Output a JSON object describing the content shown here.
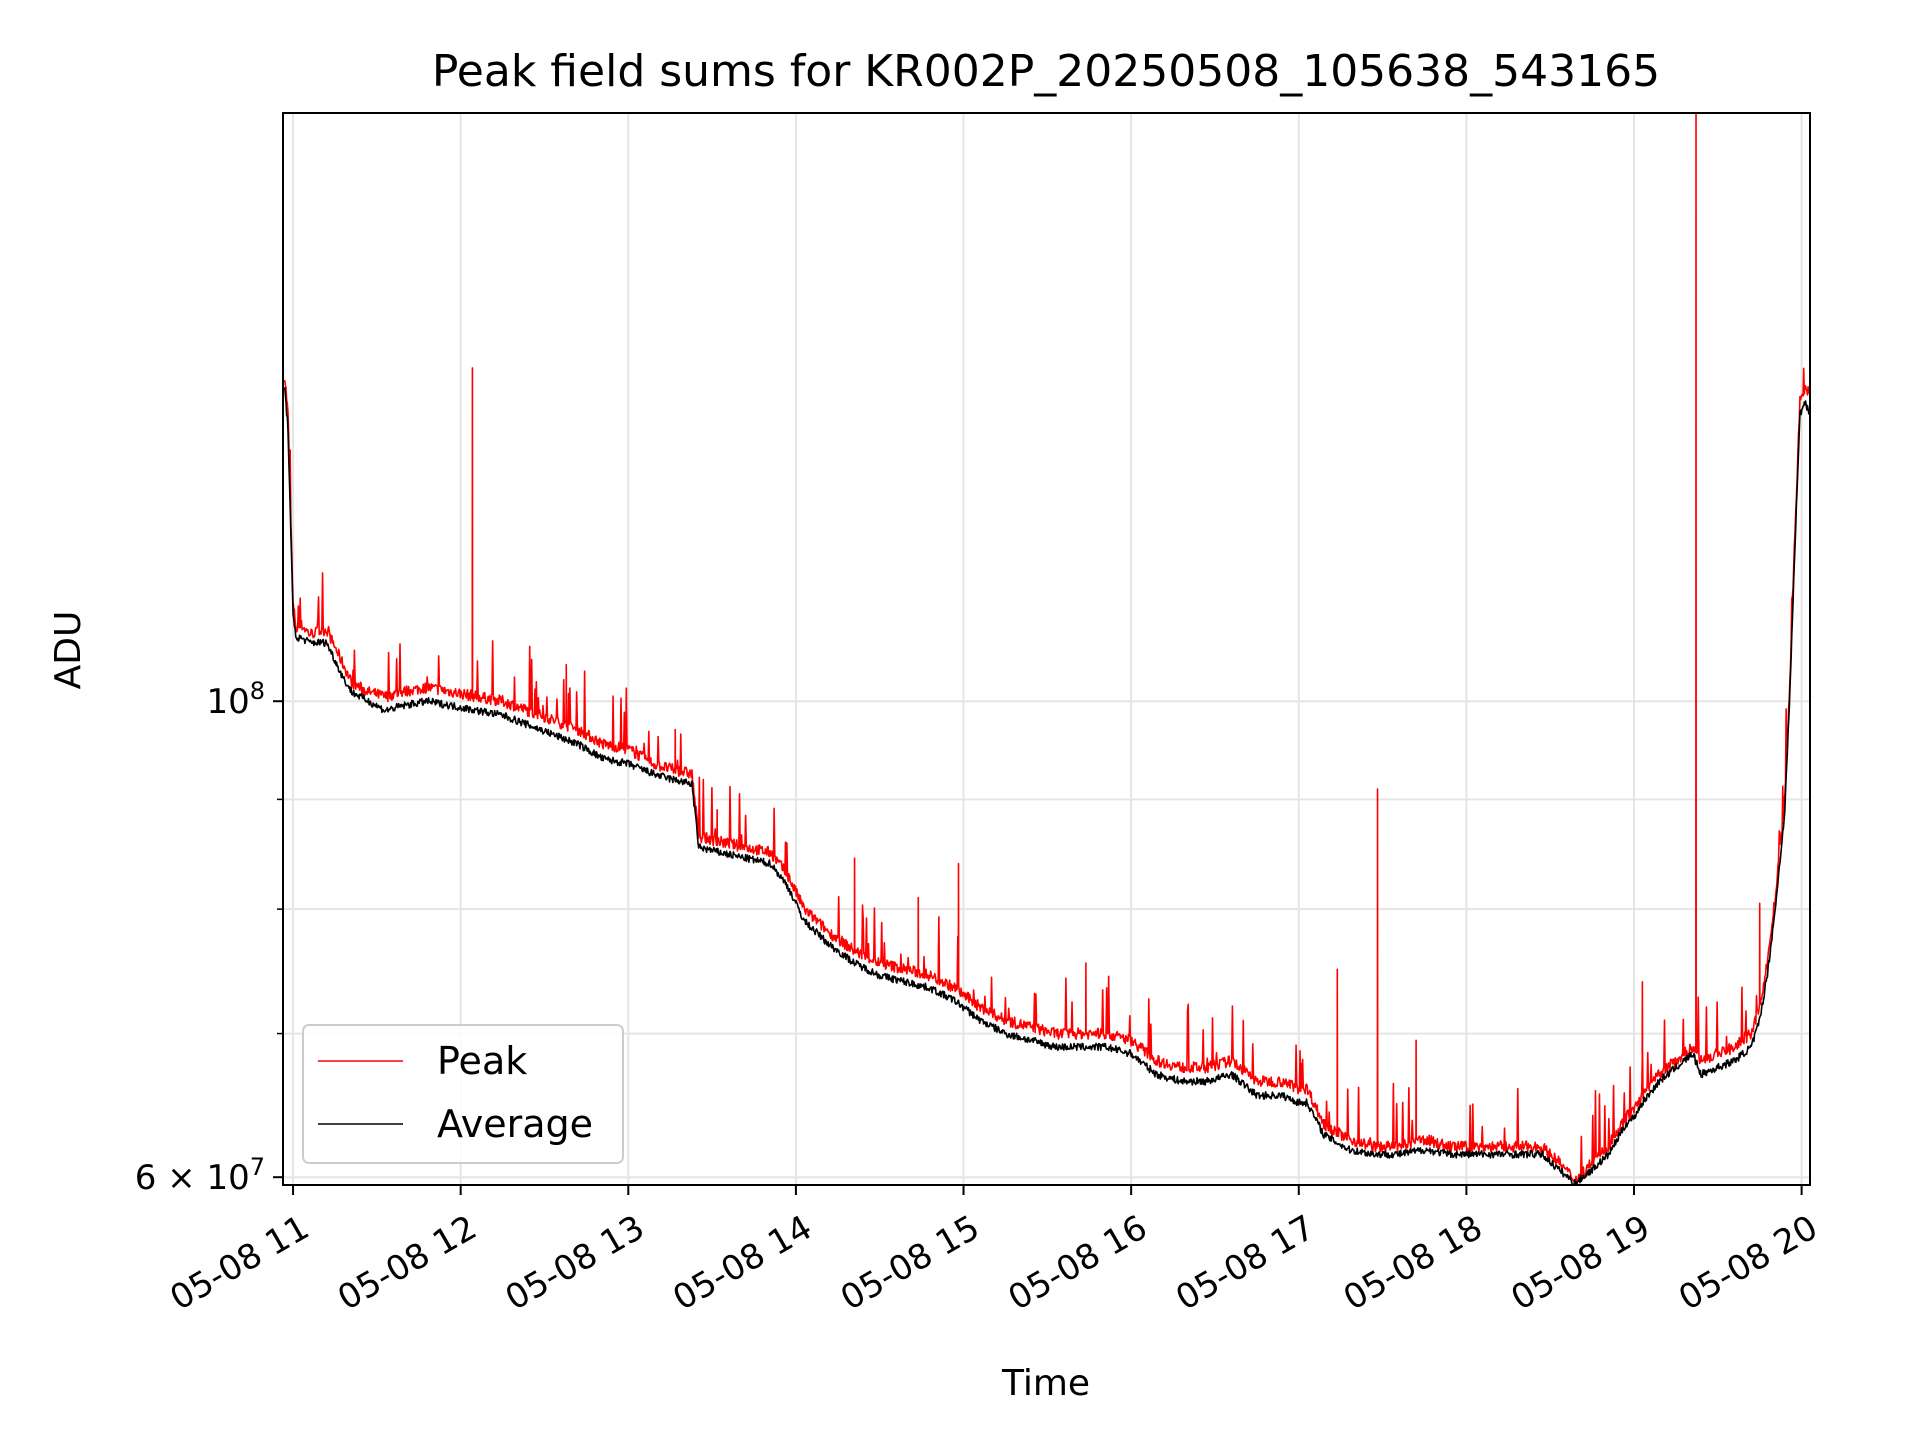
{
  "chart_data": {
    "type": "line",
    "title": "Peak field sums for KR002P_20250508_105638_543165",
    "xlabel": "Time",
    "ylabel": "ADU",
    "yscale": "log",
    "ylim": [
      59500000,
      188000000
    ],
    "xlim_hours": [
      10.94,
      20.05
    ],
    "grid": true,
    "legend_position": "lower-left",
    "x_ticks": [
      {
        "hour": 11,
        "label": "05-08 11"
      },
      {
        "hour": 12,
        "label": "05-08 12"
      },
      {
        "hour": 13,
        "label": "05-08 13"
      },
      {
        "hour": 14,
        "label": "05-08 14"
      },
      {
        "hour": 15,
        "label": "05-08 15"
      },
      {
        "hour": 16,
        "label": "05-08 16"
      },
      {
        "hour": 17,
        "label": "05-08 17"
      },
      {
        "hour": 18,
        "label": "05-08 18"
      },
      {
        "hour": 19,
        "label": "05-08 19"
      },
      {
        "hour": 20,
        "label": "05-08 20"
      }
    ],
    "y_major_ticks": [
      {
        "value": 60000000,
        "base": "6 × 10",
        "exp": "7"
      },
      {
        "value": 100000000,
        "base": "10",
        "exp": "8"
      }
    ],
    "y_minor_ticks": [
      70000000,
      80000000,
      90000000
    ],
    "series": [
      {
        "name": "Peak",
        "color": "#ff0000",
        "x": [
          10.95,
          10.97,
          11.0,
          11.02,
          11.05,
          11.1,
          11.2,
          11.3,
          11.35,
          11.45,
          11.55,
          11.65,
          11.8,
          11.95,
          12.1,
          12.25,
          12.4,
          12.55,
          12.7,
          12.85,
          13.0,
          13.15,
          13.25,
          13.38,
          13.42,
          13.55,
          13.7,
          13.85,
          13.95,
          14.05,
          14.2,
          14.35,
          14.5,
          14.65,
          14.8,
          14.95,
          15.1,
          15.25,
          15.4,
          15.55,
          15.7,
          15.85,
          16.0,
          16.15,
          16.3,
          16.45,
          16.6,
          16.75,
          16.9,
          17.0,
          17.05,
          17.15,
          17.3,
          17.45,
          17.6,
          17.75,
          17.9,
          18.05,
          18.2,
          18.35,
          18.45,
          18.55,
          18.65,
          18.75,
          18.85,
          18.95,
          19.0,
          19.05,
          19.15,
          19.25,
          19.35,
          19.4,
          19.5,
          19.6,
          19.7,
          19.75,
          19.8,
          19.85,
          19.9,
          19.93,
          19.96,
          19.99,
          20.02,
          20.05
        ],
        "y": [
          142000000,
          136000000,
          111000000,
          108000000,
          108500000,
          107500000,
          108000000,
          104000000,
          102000000,
          101000000,
          100500000,
          101000000,
          101500000,
          101000000,
          100500000,
          100000000,
          99000000,
          98000000,
          97000000,
          95500000,
          95000000,
          93500000,
          93000000,
          92500000,
          86500000,
          86000000,
          85500000,
          85000000,
          83000000,
          80000000,
          78000000,
          76500000,
          75500000,
          75000000,
          74500000,
          73500000,
          72000000,
          71000000,
          70500000,
          70000000,
          70000000,
          70000000,
          69500000,
          68000000,
          67500000,
          67500000,
          68000000,
          66500000,
          66500000,
          66000000,
          66000000,
          63500000,
          62500000,
          62000000,
          62000000,
          62500000,
          62000000,
          62000000,
          62000000,
          62000000,
          62000000,
          61000000,
          59800000,
          61000000,
          62000000,
          64000000,
          64500000,
          65500000,
          67000000,
          68000000,
          69000000,
          68000000,
          68500000,
          69000000,
          70000000,
          72000000,
          76000000,
          82000000,
          90000000,
          102000000,
          120000000,
          138000000,
          140000000,
          139000000
        ],
        "spikes": [
          {
            "x": 12.07,
            "y": 143000000
          },
          {
            "x": 12.63,
            "y": 104000000
          },
          {
            "x": 13.28,
            "y": 97000000
          },
          {
            "x": 13.53,
            "y": 89000000
          },
          {
            "x": 14.35,
            "y": 84500000
          },
          {
            "x": 14.73,
            "y": 81000000
          },
          {
            "x": 14.97,
            "y": 84000000
          },
          {
            "x": 15.73,
            "y": 75500000
          },
          {
            "x": 17.23,
            "y": 75000000
          },
          {
            "x": 17.47,
            "y": 91000000
          },
          {
            "x": 17.7,
            "y": 69500000
          },
          {
            "x": 19.05,
            "y": 74000000
          },
          {
            "x": 19.37,
            "y": 188000000
          },
          {
            "x": 19.75,
            "y": 80500000
          }
        ]
      },
      {
        "name": "Average",
        "color": "#000000",
        "x": [
          10.95,
          10.97,
          11.0,
          11.02,
          11.05,
          11.1,
          11.2,
          11.3,
          11.35,
          11.45,
          11.55,
          11.65,
          11.8,
          11.95,
          12.1,
          12.25,
          12.4,
          12.55,
          12.7,
          12.85,
          13.0,
          13.15,
          13.25,
          13.38,
          13.42,
          13.55,
          13.7,
          13.85,
          13.95,
          14.05,
          14.2,
          14.35,
          14.5,
          14.65,
          14.8,
          14.95,
          15.1,
          15.25,
          15.4,
          15.55,
          15.7,
          15.85,
          16.0,
          16.15,
          16.3,
          16.45,
          16.6,
          16.75,
          16.9,
          17.0,
          17.05,
          17.15,
          17.3,
          17.45,
          17.6,
          17.75,
          17.9,
          18.05,
          18.2,
          18.35,
          18.45,
          18.55,
          18.65,
          18.75,
          18.85,
          18.95,
          19.0,
          19.05,
          19.15,
          19.25,
          19.35,
          19.4,
          19.5,
          19.6,
          19.7,
          19.75,
          19.8,
          19.85,
          19.9,
          19.93,
          19.96,
          19.99,
          20.02,
          20.05
        ],
        "y": [
          140000000,
          134000000,
          109500000,
          107000000,
          107000000,
          106500000,
          106500000,
          102500000,
          101000000,
          100000000,
          99000000,
          99500000,
          100000000,
          99500000,
          99000000,
          98500000,
          97500000,
          96500000,
          95500000,
          94000000,
          93500000,
          92500000,
          92000000,
          91500000,
          85500000,
          85000000,
          84500000,
          84000000,
          82000000,
          79000000,
          77000000,
          75500000,
          74500000,
          74000000,
          73500000,
          72500000,
          71000000,
          70000000,
          69500000,
          69000000,
          69000000,
          69000000,
          68500000,
          67000000,
          66500000,
          66500000,
          67000000,
          65500000,
          65500000,
          65000000,
          65000000,
          62800000,
          61800000,
          61500000,
          61500000,
          61800000,
          61500000,
          61500000,
          61500000,
          61500000,
          61500000,
          60500000,
          59600000,
          60500000,
          61500000,
          63500000,
          64000000,
          65000000,
          66500000,
          67500000,
          68500000,
          67000000,
          67500000,
          68000000,
          69000000,
          71000000,
          75000000,
          81000000,
          89000000,
          101000000,
          118000000,
          136000000,
          138000000,
          136000000
        ]
      }
    ]
  }
}
